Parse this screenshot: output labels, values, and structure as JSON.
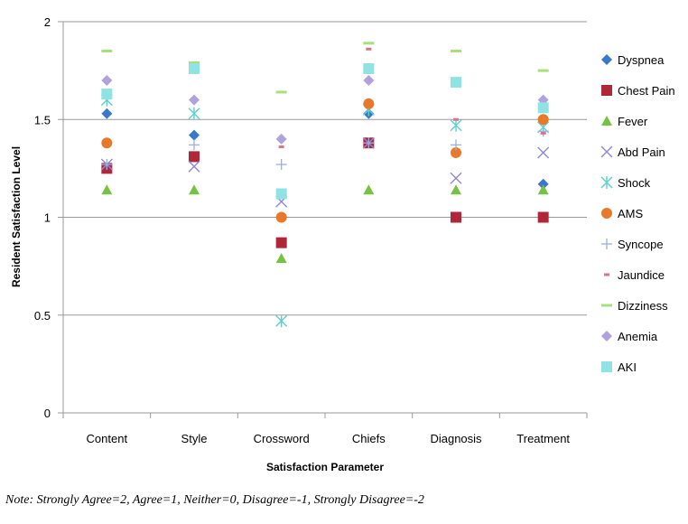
{
  "chart_data": {
    "type": "scatter",
    "title": "",
    "xlabel": "Satisfaction Parameter",
    "ylabel": "Resident Satisfaction Level",
    "ylim": [
      0,
      2
    ],
    "yticks": [
      0,
      0.5,
      1,
      1.5,
      2
    ],
    "ytick_labels": [
      "0",
      "0.5",
      "1",
      "1.5",
      "2"
    ],
    "grid": "horizontal",
    "legend_position": "right",
    "categories": [
      "Content",
      "Style",
      "Crossword",
      "Chiefs",
      "Diagnosis",
      "Treatment"
    ],
    "series": [
      {
        "name": "Dyspnea",
        "marker": "diamond",
        "color": "#3a78c9",
        "values": [
          1.53,
          1.42,
          null,
          1.53,
          null,
          1.17
        ]
      },
      {
        "name": "Chest Pain",
        "marker": "square",
        "color": "#b0273a",
        "values": [
          1.25,
          1.31,
          0.87,
          1.38,
          1.0,
          1.0
        ]
      },
      {
        "name": "Fever",
        "marker": "triangle",
        "color": "#77c243",
        "values": [
          1.14,
          1.14,
          0.79,
          1.14,
          1.14,
          1.14
        ]
      },
      {
        "name": "Abd Pain",
        "marker": "x",
        "color": "#8f88d6",
        "values": [
          1.27,
          1.26,
          1.08,
          1.38,
          1.2,
          1.33
        ]
      },
      {
        "name": "Shock",
        "marker": "star",
        "color": "#5cd0d0",
        "values": [
          1.6,
          1.53,
          0.47,
          1.55,
          1.47,
          1.46
        ]
      },
      {
        "name": "AMS",
        "marker": "circle",
        "color": "#e8792b",
        "values": [
          1.38,
          null,
          1.0,
          1.58,
          1.33,
          1.5
        ]
      },
      {
        "name": "Syncope",
        "marker": "plus",
        "color": "#9ab0e0",
        "values": [
          1.27,
          1.37,
          1.27,
          1.38,
          1.37,
          1.44
        ]
      },
      {
        "name": "Jaundice",
        "marker": "dash",
        "color": "#d9758a",
        "values": [
          null,
          null,
          1.36,
          1.86,
          1.5,
          1.43
        ]
      },
      {
        "name": "Dizziness",
        "marker": "dash-wide",
        "color": "#a8e07a",
        "values": [
          1.85,
          1.79,
          1.64,
          1.89,
          1.85,
          1.75
        ]
      },
      {
        "name": "Anemia",
        "marker": "diamond",
        "color": "#b0a2dd",
        "values": [
          1.7,
          1.6,
          1.4,
          1.7,
          null,
          1.6
        ]
      },
      {
        "name": "AKI",
        "marker": "square",
        "color": "#8fe3e3",
        "values": [
          1.63,
          1.76,
          1.12,
          1.76,
          1.69,
          1.56
        ]
      }
    ]
  },
  "note": "Note: Strongly Agree=2, Agree=1, Neither=0, Disagree=-1, Strongly Disagree=-2"
}
